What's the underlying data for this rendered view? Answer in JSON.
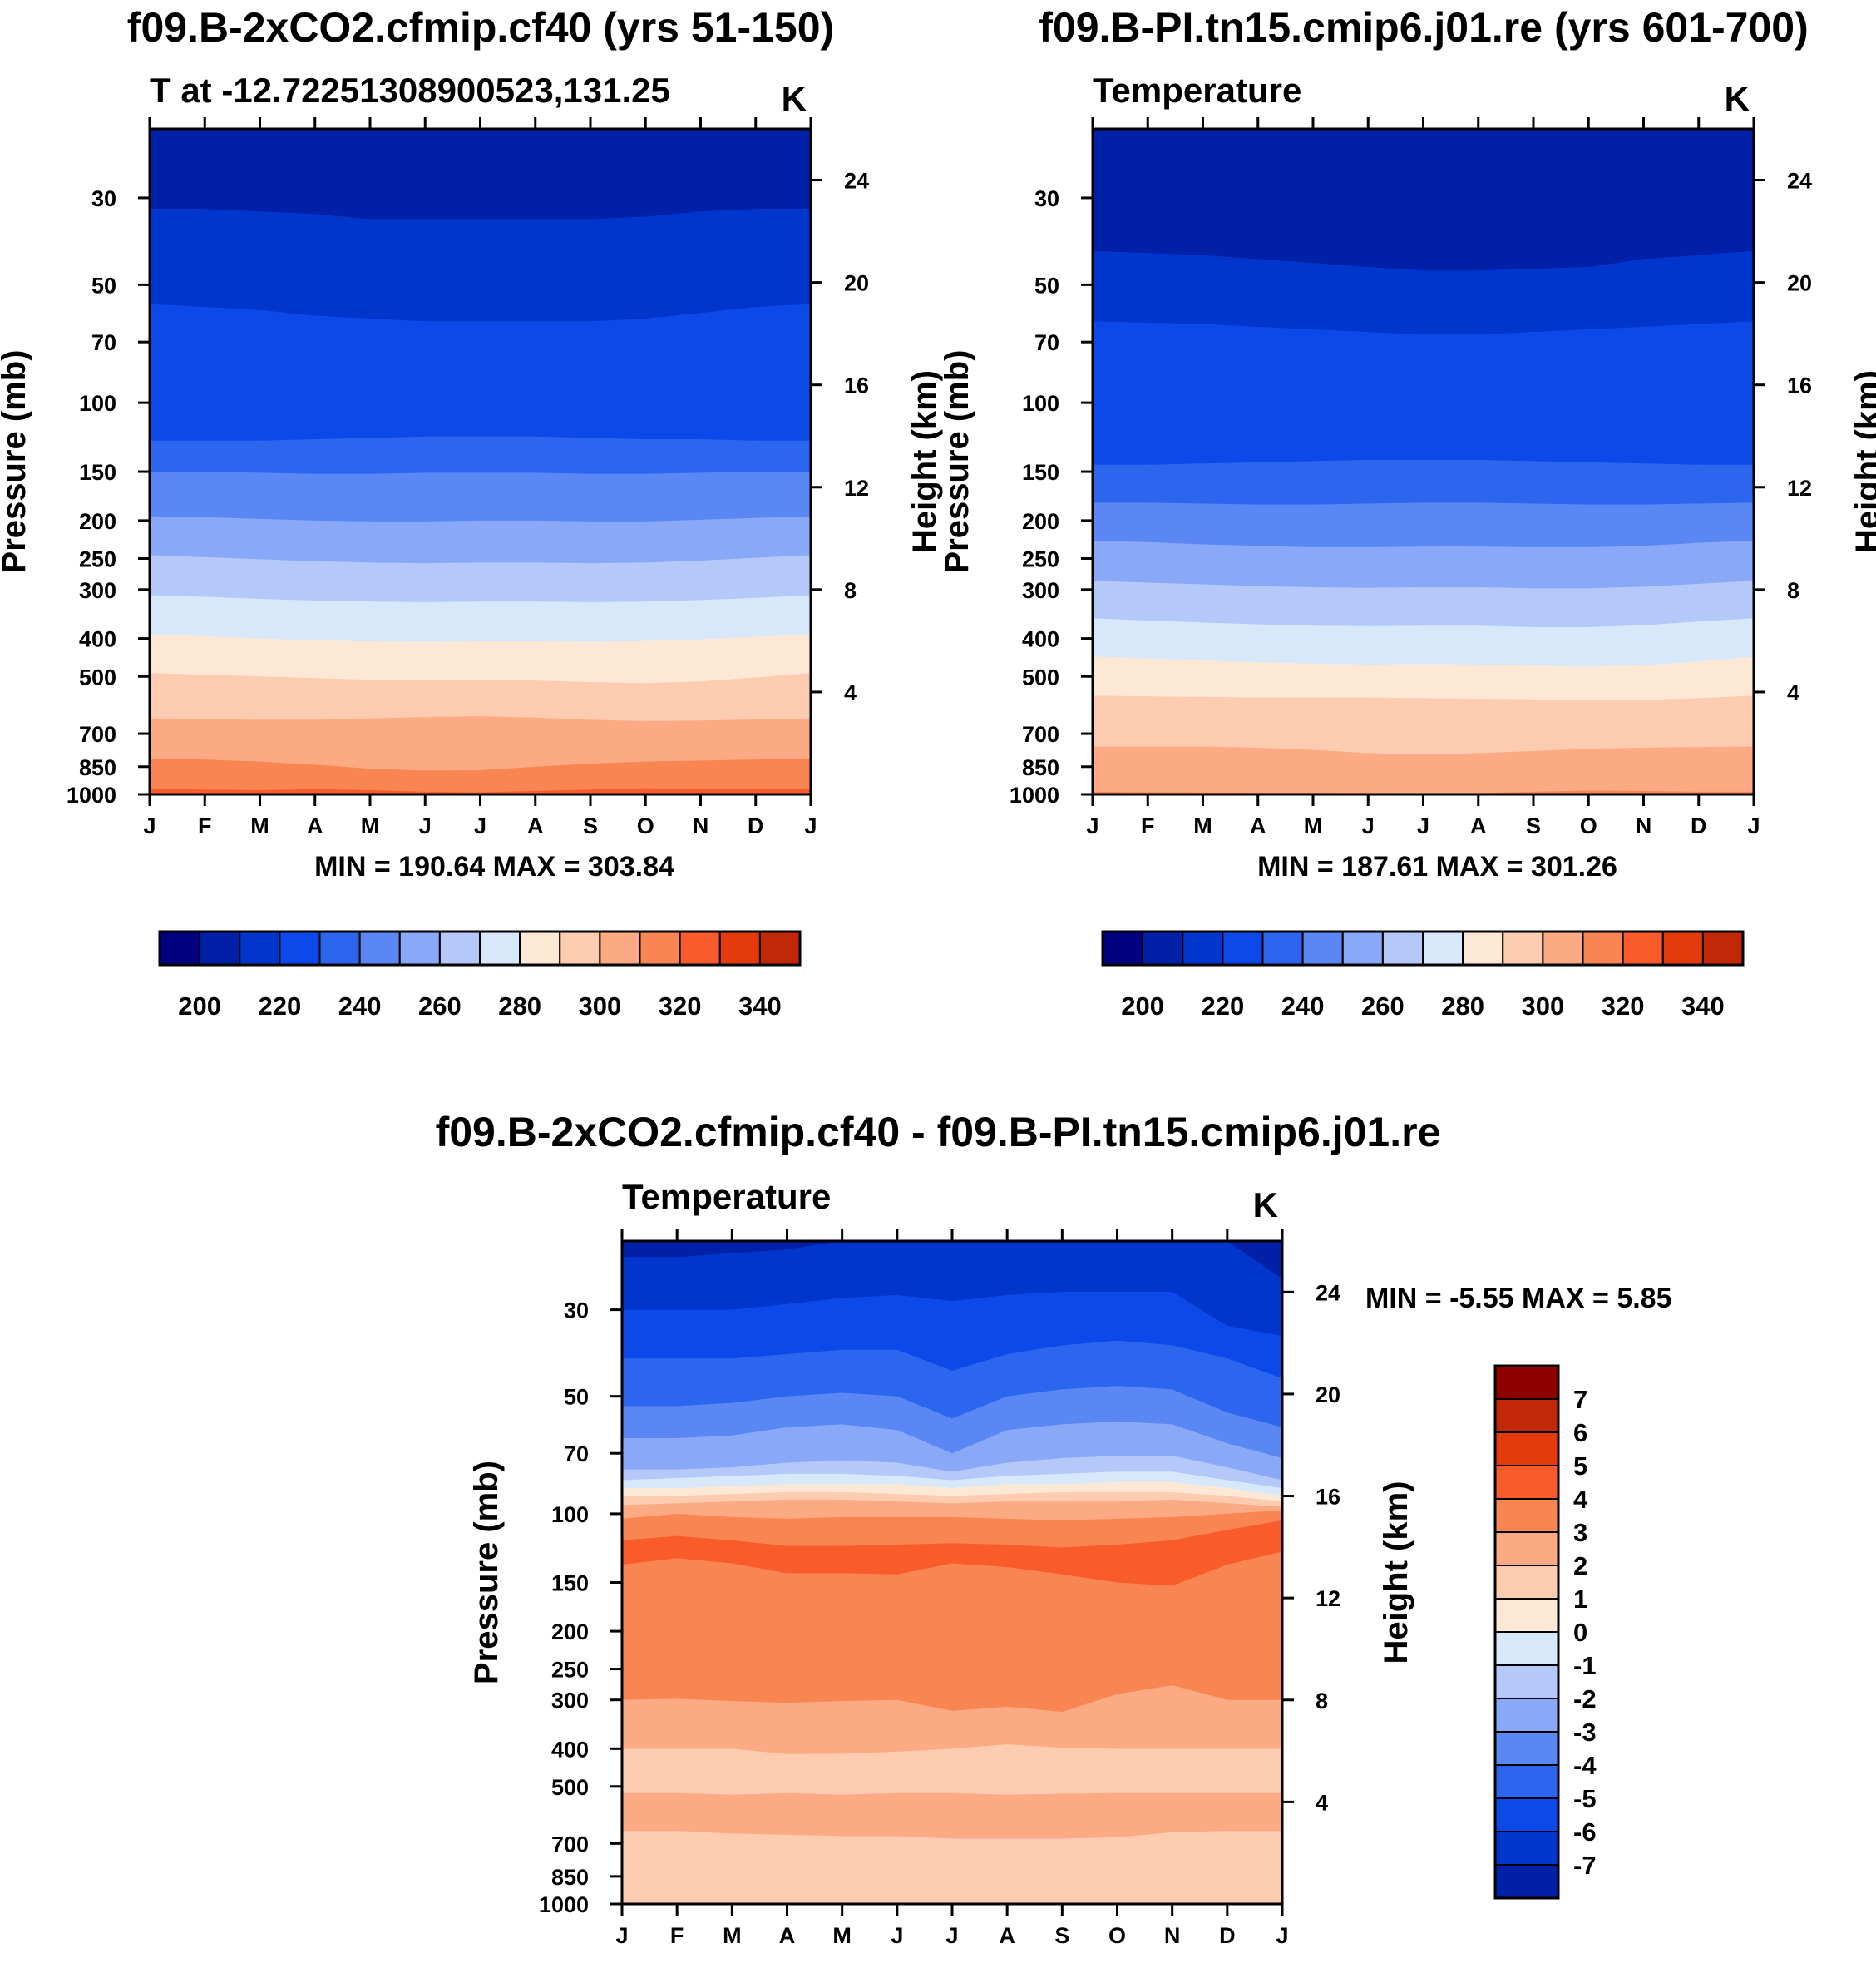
{
  "figure_labels": {
    "panel_a_title": "f09.B-2xCO2.cfmip.cf40 (yrs 51-150)",
    "panel_b_title": "f09.B-PI.tn15.cmip6.j01.re (yrs 601-700)",
    "panel_c_title": "f09.B-2xCO2.cfmip.cf40 - f09.B-PI.tn15.cmip6.j01.re"
  },
  "chart_data": [
    {
      "id": "a",
      "type": "heatmap",
      "title": "f09.B-2xCO2.cfmip.cf40 (yrs 51-150)",
      "left_label": "T at -12.72251308900523,131.25",
      "units": "K",
      "xlabel": "",
      "ylabel": "Pressure (mb)",
      "y2label": "Height (km)",
      "x_ticks": [
        "J",
        "F",
        "M",
        "A",
        "M",
        "J",
        "J",
        "A",
        "S",
        "O",
        "N",
        "D",
        "J"
      ],
      "y_ticks": [
        30,
        50,
        70,
        100,
        150,
        200,
        250,
        300,
        400,
        500,
        700,
        850,
        1000
      ],
      "y2_ticks": [
        24,
        20,
        16,
        12,
        8,
        4
      ],
      "ylim": [
        1000,
        20
      ],
      "y2lim": [
        0,
        26
      ],
      "stats": "MIN = 190.64 MAX = 303.84",
      "colorbar_labels": [
        "200",
        "220",
        "240",
        "260",
        "280",
        "300",
        "320",
        "340"
      ],
      "contour_levels": [
        200,
        210,
        220,
        230,
        240,
        250,
        260,
        270,
        280,
        290,
        300,
        310,
        320,
        330,
        340
      ],
      "boundaries_hPa": [
        [
          32,
          32,
          32.5,
          33,
          34,
          34,
          34,
          34,
          34,
          33.5,
          32.5,
          32,
          32
        ],
        [
          56,
          57,
          58,
          60,
          61,
          62,
          62,
          62,
          62,
          61,
          59,
          57,
          56
        ],
        [
          125,
          125,
          125,
          124,
          123,
          122,
          122,
          122,
          123,
          124,
          124,
          125,
          125
        ],
        [
          150,
          150,
          151,
          152,
          152,
          151,
          151,
          151,
          152,
          152,
          151,
          150,
          150
        ],
        [
          195,
          196,
          198,
          200,
          201,
          201,
          200,
          200,
          201,
          201,
          199,
          197,
          195
        ],
        [
          245,
          248,
          251,
          254,
          256,
          257,
          256,
          256,
          257,
          256,
          253,
          249,
          245
        ],
        [
          310,
          313,
          317,
          320,
          322,
          323,
          322,
          322,
          323,
          322,
          319,
          315,
          310
        ],
        [
          390,
          395,
          400,
          404,
          407,
          408,
          407,
          407,
          408,
          406,
          402,
          396,
          390
        ],
        [
          490,
          495,
          500,
          505,
          510,
          512,
          511,
          512,
          517,
          520,
          515,
          503,
          490
        ],
        [
          640,
          642,
          645,
          645,
          640,
          635,
          632,
          637,
          645,
          650,
          648,
          644,
          640
        ],
        [
          810,
          815,
          825,
          840,
          860,
          870,
          868,
          850,
          835,
          825,
          820,
          815,
          810
        ],
        [
          970,
          972,
          975,
          970,
          975,
          985,
          988,
          980,
          972,
          965,
          968,
          970,
          970
        ]
      ],
      "region_values": [
        195,
        205,
        215,
        225,
        235,
        245,
        255,
        265,
        275,
        285,
        295,
        305,
        315
      ]
    },
    {
      "id": "b",
      "type": "heatmap",
      "title": "f09.B-PI.tn15.cmip6.j01.re (yrs 601-700)",
      "left_label": "Temperature",
      "units": "K",
      "xlabel": "",
      "ylabel": "Pressure (mb)",
      "y2label": "Height (km)",
      "x_ticks": [
        "J",
        "F",
        "M",
        "A",
        "M",
        "J",
        "J",
        "A",
        "S",
        "O",
        "N",
        "D",
        "J"
      ],
      "y_ticks": [
        30,
        50,
        70,
        100,
        150,
        200,
        250,
        300,
        400,
        500,
        700,
        850,
        1000
      ],
      "y2_ticks": [
        24,
        20,
        16,
        12,
        8,
        4
      ],
      "ylim": [
        1000,
        20
      ],
      "y2lim": [
        0,
        26
      ],
      "stats": "MIN = 187.61 MAX = 301.26",
      "colorbar_labels": [
        "200",
        "220",
        "240",
        "260",
        "280",
        "300",
        "320",
        "340"
      ],
      "contour_levels": [
        200,
        210,
        220,
        230,
        240,
        250,
        260,
        270,
        280,
        290,
        300,
        310,
        320,
        330,
        340
      ],
      "boundaries_hPa": [
        [
          41,
          41.5,
          42,
          43,
          44,
          45,
          46,
          46,
          45.5,
          45,
          43,
          42,
          41
        ],
        [
          62,
          62.5,
          63,
          64,
          65,
          66,
          67,
          67,
          66,
          65,
          64,
          63,
          62
        ],
        [
          144,
          144,
          143,
          142,
          141,
          140,
          140,
          140,
          141,
          142,
          143,
          144,
          144
        ],
        [
          180,
          180,
          181,
          182,
          182,
          181,
          180,
          180,
          181,
          182,
          182,
          181,
          180
        ],
        [
          225,
          227,
          230,
          232,
          234,
          234,
          233,
          233,
          234,
          234,
          232,
          228,
          225
        ],
        [
          285,
          288,
          291,
          294,
          296,
          297,
          296,
          296,
          298,
          298,
          295,
          290,
          285
        ],
        [
          355,
          360,
          364,
          368,
          371,
          372,
          371,
          371,
          374,
          374,
          370,
          362,
          355
        ],
        [
          445,
          450,
          455,
          460,
          464,
          466,
          465,
          466,
          470,
          472,
          468,
          458,
          445
        ],
        [
          560,
          562,
          564,
          566,
          566,
          566,
          568,
          570,
          572,
          576,
          574,
          568,
          560
        ],
        [
          755,
          755,
          755,
          760,
          770,
          785,
          790,
          785,
          775,
          765,
          760,
          757,
          755
        ],
        [
          985,
          987,
          989,
          990,
          990,
          992,
          994,
          992,
          985,
          978,
          980,
          985,
          985
        ]
      ],
      "region_values": [
        195,
        205,
        215,
        225,
        235,
        245,
        255,
        265,
        275,
        285,
        295,
        305
      ]
    },
    {
      "id": "c",
      "type": "heatmap",
      "title": "f09.B-2xCO2.cfmip.cf40 - f09.B-PI.tn15.cmip6.j01.re",
      "left_label": "Temperature",
      "units": "K",
      "xlabel": "",
      "ylabel": "Pressure (mb)",
      "y2label": "Height (km)",
      "x_ticks": [
        "J",
        "F",
        "M",
        "A",
        "M",
        "J",
        "J",
        "A",
        "S",
        "O",
        "N",
        "D",
        "J"
      ],
      "y_ticks": [
        30,
        50,
        70,
        100,
        150,
        200,
        250,
        300,
        400,
        500,
        700,
        850,
        1000
      ],
      "y2_ticks": [
        24,
        20,
        16,
        12,
        8,
        4
      ],
      "ylim": [
        1000,
        20
      ],
      "y2lim": [
        0,
        26
      ],
      "stats": "MIN =  -5.55 MAX =    5.85",
      "colorbar_labels": [
        "7",
        "6",
        "5",
        "4",
        "3",
        "2",
        "1",
        "0",
        "-1",
        "-2",
        "-3",
        "-4",
        "-5",
        "-6",
        "-7"
      ],
      "contour_levels": [
        7,
        6,
        5,
        4,
        3,
        2,
        1,
        0,
        -1,
        -2,
        -3,
        -4,
        -5,
        -6,
        -7
      ],
      "boundaries_hPa": [
        [
          22,
          22,
          21.5,
          21,
          20,
          20,
          20,
          20,
          20,
          20,
          20,
          20,
          25
        ],
        [
          30,
          30,
          30,
          29,
          28,
          27.5,
          28.5,
          27.5,
          27,
          27,
          27,
          33,
          35
        ],
        [
          40,
          40,
          40,
          39,
          38,
          38,
          43,
          39,
          37,
          36,
          37,
          40,
          45
        ],
        [
          53,
          53,
          52,
          50,
          49,
          50,
          57,
          50,
          48,
          47,
          48,
          55,
          60
        ],
        [
          64,
          64,
          63,
          60,
          59,
          61,
          70,
          61,
          59,
          58,
          59,
          66,
          72
        ],
        [
          77,
          77,
          76,
          74,
          73,
          74,
          78,
          74,
          72,
          71,
          71,
          76,
          82
        ],
        [
          82,
          81,
          80,
          79,
          79,
          80,
          82,
          80,
          79,
          78,
          78,
          82,
          86
        ],
        [
          86,
          86,
          85,
          84,
          84,
          84,
          86,
          84,
          84,
          83,
          83,
          86,
          90
        ],
        [
          90,
          90,
          89,
          88,
          88,
          89,
          90,
          89,
          88,
          88,
          88,
          90,
          93
        ],
        [
          95,
          94,
          93,
          92,
          92,
          93,
          94,
          93,
          93,
          93,
          92,
          94,
          96
        ],
        [
          103,
          100,
          102,
          103,
          102,
          102,
          102,
          103,
          104,
          103,
          102,
          100,
          98
        ],
        [
          117,
          114,
          117,
          121,
          121,
          120,
          119,
          120,
          122,
          120,
          117,
          110,
          104
        ],
        [
          135,
          130,
          134,
          142,
          142,
          143,
          134,
          137,
          143,
          150,
          153,
          135,
          125
        ],
        [
          300,
          298,
          302,
          305,
          302,
          300,
          320,
          312,
          322,
          290,
          275,
          300,
          300
        ],
        [
          400,
          400,
          400,
          413,
          412,
          407,
          400,
          390,
          398,
          400,
          400,
          400,
          400
        ],
        [
          520,
          520,
          525,
          520,
          525,
          520,
          520,
          525,
          522,
          520,
          520,
          520,
          520
        ],
        [
          585,
          585,
          585,
          590,
          590,
          590,
          590,
          590,
          590,
          590,
          585,
          575,
          575
        ],
        [
          650,
          650,
          660,
          665,
          670,
          670,
          680,
          680,
          680,
          675,
          655,
          650,
          650
        ]
      ],
      "region_values": [
        -6.5,
        -5.5,
        -4.5,
        -3.5,
        -2.5,
        -1.5,
        -0.5,
        0.5,
        1.5,
        2.5,
        3.5,
        4.5,
        5.5,
        4.5,
        3.5,
        2.5,
        3.5,
        3.5,
        2.5
      ]
    }
  ]
}
